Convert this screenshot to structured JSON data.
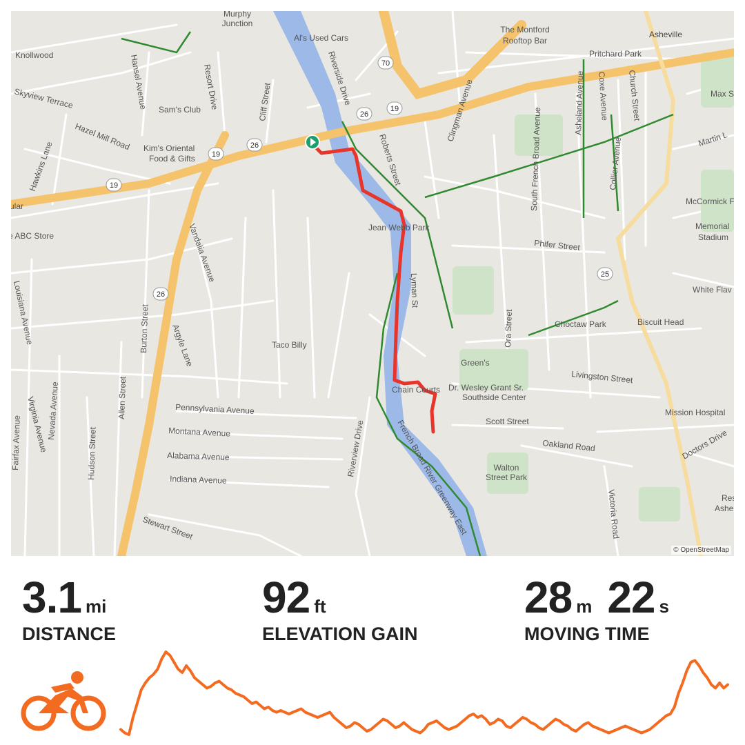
{
  "map": {
    "attribution": "© OpenStreetMap",
    "labels": {
      "murphy": "Murphy",
      "junction": "Junction",
      "als": "Al's Used Cars",
      "montford1": "The Montford",
      "montford2": "Rooftop Bar",
      "asheville": "Asheville",
      "pritchard": "Pritchard Park",
      "knollwood": "Knollwood",
      "skyview": "Skyview Terrace",
      "hansel": "Hansel Avenue",
      "resort": "Resort Drive",
      "cliff": "Cliff Street",
      "samsclub": "Sam's Club",
      "hazelmill": "Hazel Mill Road",
      "hawkins": "Hawkins Lane",
      "kims1": "Kim's Oriental",
      "kims2": "Food & Gifts",
      "riverside": "Riverside Drive",
      "roberts": "Roberts Street",
      "clingman": "Clingman Avenue",
      "southfrench": "South French Broad Avenue",
      "asheland": "Asheland Avenue",
      "coxe": "Coxe Avenue",
      "church": "Church Street",
      "collier": "Collier Avenue",
      "maxst": "Max St",
      "martinl": "Martin L",
      "mccormick": "McCormick Field",
      "memorial1": "Memorial",
      "memorial2": "Stadium",
      "jeanwebb": "Jean Webb Park",
      "phifer": "Phifer Street",
      "abcstore": "e ABC Store",
      "ular": "ular",
      "vandalia": "Vandalia Avenue",
      "louisiana": "Louisiana Avenue",
      "burton": "Burton Street",
      "argyle": "Argyle Lane",
      "tacobilly": "Taco Billy",
      "lyman": "Lyman St",
      "choctaw": "Choctaw Park",
      "whiteflav": "White Flav",
      "biscuit": "Biscuit Head",
      "oraSt": "Ora Street",
      "greens": "Green's",
      "wesley1": "Dr. Wesley Grant Sr.",
      "wesley2": "Southside Center",
      "livingston": "Livingston Street",
      "chain": "Chain Courts",
      "scott": "Scott Street",
      "oakland": "Oakland Road",
      "walton1": "Walton",
      "walton2": "Street Park",
      "missionhosp": "Mission Hospital",
      "doctors": "Doctors Drive",
      "res1": "Res",
      "res2": "Ashe",
      "victoria": "Victoria Road",
      "pennsylvania": "Pennsylvania Avenue",
      "montana": "Montana Avenue",
      "alabama": "Alabama Avenue",
      "indiana": "Indiana Avenue",
      "stewart": "Stewart Street",
      "fairfax": "Fairfax Avenue",
      "virginia": "Virginia Avenue",
      "nevada": "Nevada Avenue",
      "hudson": "Hudson Street",
      "allen": "Allen Street",
      "riverview": "Riverview Drive",
      "greenway": "French Broad River Greenway East",
      "shield70": "70",
      "shield26a": "26",
      "shield19a": "19",
      "shield26b": "26",
      "shield19b": "19",
      "shield19c": "19",
      "shield26c": "26",
      "shield25": "25"
    }
  },
  "stats": {
    "distance": {
      "value": "3.1",
      "unit": "mi",
      "label": "DISTANCE"
    },
    "elevation": {
      "value": "92",
      "unit": "ft",
      "label": "ELEVATION GAIN"
    },
    "moving": {
      "minutes": "28",
      "min_unit": "m",
      "seconds": "22",
      "sec_unit": "s",
      "label": "MOVING TIME"
    }
  },
  "activity": {
    "icon": "cycling-icon",
    "type": "Ride"
  },
  "colors": {
    "route": "#e8352b",
    "river": "#9cb9e8",
    "highway": "#f5c36b",
    "park": "#cfe3c8",
    "greenway": "#2f8a2f",
    "elevation": "#f26b21",
    "start_marker": "#1aa06b"
  },
  "elevation_profile": [
    18,
    14,
    12,
    32,
    48,
    64,
    72,
    78,
    82,
    88,
    100,
    108,
    104,
    96,
    88,
    84,
    92,
    86,
    78,
    74,
    70,
    66,
    68,
    72,
    74,
    70,
    66,
    64,
    60,
    58,
    56,
    52,
    48,
    50,
    46,
    42,
    44,
    40,
    38,
    40,
    38,
    36,
    38,
    40,
    42,
    38,
    36,
    34,
    32,
    34,
    36,
    38,
    32,
    28,
    24,
    20,
    22,
    26,
    24,
    20,
    16,
    18,
    22,
    26,
    30,
    28,
    24,
    20,
    22,
    26,
    22,
    18,
    16,
    14,
    18,
    24,
    26,
    28,
    24,
    20,
    18,
    20,
    22,
    26,
    30,
    34,
    36,
    32,
    34,
    30,
    24,
    26,
    30,
    28,
    22,
    20,
    24,
    28,
    32,
    30,
    26,
    24,
    20,
    18,
    22,
    26,
    30,
    28,
    24,
    22,
    18,
    16,
    20,
    24,
    26,
    22,
    20,
    18,
    16,
    14,
    16,
    18,
    20,
    22,
    20,
    18,
    16,
    14,
    16,
    18,
    22,
    26,
    30,
    34,
    36,
    44,
    60,
    72,
    86,
    96,
    98,
    92,
    84,
    78,
    70,
    66,
    72,
    66,
    70
  ]
}
